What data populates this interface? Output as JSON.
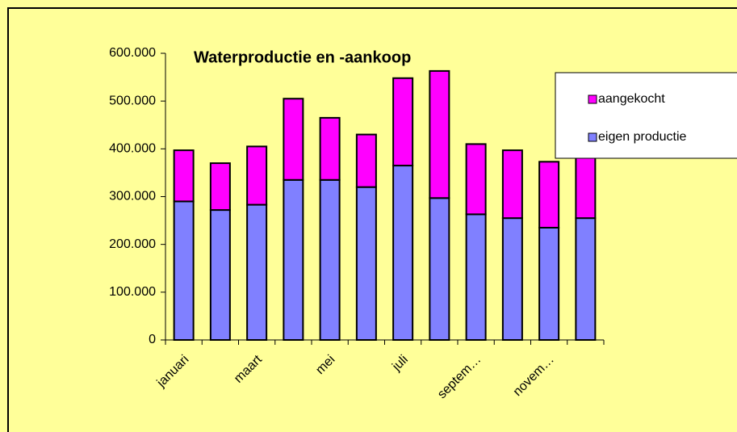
{
  "chart_data": {
    "type": "bar",
    "stacked": true,
    "title": "Waterproductie en -aankoop",
    "categories": [
      "januari",
      null,
      "maart",
      null,
      "mei",
      null,
      "juli",
      null,
      "septem…",
      null,
      "novem…",
      null
    ],
    "series": [
      {
        "name": "eigen productie",
        "color": "#8080ff",
        "values": [
          290000,
          272000,
          283000,
          335000,
          335000,
          320000,
          365000,
          297000,
          263000,
          255000,
          235000,
          255000
        ]
      },
      {
        "name": "aangekocht",
        "color": "#ff00ff",
        "values": [
          107000,
          98000,
          122000,
          170000,
          130000,
          110000,
          183000,
          266000,
          147000,
          142000,
          138000,
          145000
        ]
      }
    ],
    "ylim": [
      0,
      600000
    ],
    "yticks": [
      0,
      {
        "value": 100000,
        "label": "100.000"
      },
      {
        "value": 200000,
        "label": "200.000"
      },
      {
        "value": 300000,
        "label": "300.000"
      },
      {
        "value": 400000,
        "label": "400.000"
      },
      {
        "value": 500000,
        "label": "500.000"
      },
      {
        "value": 600000,
        "label": "600.000"
      }
    ],
    "legend": "upper right"
  }
}
